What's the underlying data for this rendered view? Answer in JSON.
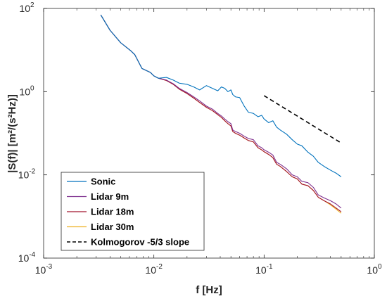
{
  "chart_data": {
    "type": "line",
    "xlabel": "f [Hz]",
    "ylabel": "|S(f)| [m²/(s²Hz)]",
    "xscale": "log",
    "yscale": "log",
    "xlim": [
      0.001,
      1
    ],
    "ylim": [
      0.0001,
      100
    ],
    "grid": false,
    "legend_position": "bottom-left",
    "x_ticks": [
      {
        "base": "10",
        "exp": "-3",
        "value": 0.001
      },
      {
        "base": "10",
        "exp": "-2",
        "value": 0.01
      },
      {
        "base": "10",
        "exp": "-1",
        "value": 0.1
      },
      {
        "base": "10",
        "exp": "0",
        "value": 1
      }
    ],
    "y_ticks": [
      {
        "base": "10",
        "exp": "-4",
        "value": 0.0001
      },
      {
        "base": "10",
        "exp": "-2",
        "value": 0.01
      },
      {
        "base": "10",
        "exp": "0",
        "value": 1
      },
      {
        "base": "10",
        "exp": "2",
        "value": 100
      }
    ],
    "series": [
      {
        "name": "Sonic",
        "color": "#0072BD",
        "line_style": "solid",
        "x": [
          0.0033,
          0.004,
          0.005,
          0.0062,
          0.0067,
          0.0078,
          0.0093,
          0.01,
          0.011,
          0.013,
          0.015,
          0.017,
          0.02,
          0.023,
          0.026,
          0.03,
          0.034,
          0.038,
          0.041,
          0.044,
          0.047,
          0.05,
          0.052,
          0.055,
          0.06,
          0.066,
          0.072,
          0.08,
          0.088,
          0.095,
          0.1,
          0.11,
          0.12,
          0.13,
          0.14,
          0.16,
          0.18,
          0.2,
          0.22,
          0.25,
          0.28,
          0.31,
          0.35,
          0.4,
          0.45,
          0.5
        ],
        "y": [
          70,
          30,
          15,
          9.5,
          7.8,
          3.6,
          2.9,
          2.4,
          2.1,
          2.2,
          1.9,
          1.6,
          1.5,
          1.3,
          1.1,
          1.4,
          1.2,
          1.05,
          1.3,
          1.2,
          1.0,
          1.1,
          0.85,
          0.75,
          0.72,
          0.45,
          0.32,
          0.3,
          0.25,
          0.27,
          0.22,
          0.18,
          0.2,
          0.14,
          0.12,
          0.095,
          0.07,
          0.055,
          0.05,
          0.035,
          0.028,
          0.02,
          0.016,
          0.013,
          0.011,
          0.009
        ]
      },
      {
        "name": "Lidar 9m",
        "color": "#7E2F8E",
        "line_style": "solid",
        "x": [
          0.0033,
          0.004,
          0.005,
          0.0062,
          0.0067,
          0.0078,
          0.0093,
          0.01,
          0.011,
          0.013,
          0.015,
          0.017,
          0.02,
          0.023,
          0.026,
          0.03,
          0.034,
          0.038,
          0.041,
          0.044,
          0.047,
          0.05,
          0.052,
          0.055,
          0.06,
          0.066,
          0.072,
          0.08,
          0.088,
          0.095,
          0.1,
          0.11,
          0.12,
          0.13,
          0.14,
          0.16,
          0.18,
          0.2,
          0.22,
          0.25,
          0.28,
          0.31,
          0.35,
          0.4,
          0.45,
          0.5
        ],
        "y": [
          70,
          30,
          15,
          9.5,
          7.8,
          3.6,
          2.9,
          2.4,
          2.1,
          1.9,
          1.55,
          1.2,
          0.95,
          0.75,
          0.6,
          0.45,
          0.38,
          0.3,
          0.26,
          0.22,
          0.19,
          0.17,
          0.12,
          0.11,
          0.1,
          0.085,
          0.075,
          0.07,
          0.05,
          0.045,
          0.04,
          0.035,
          0.03,
          0.02,
          0.018,
          0.014,
          0.01,
          0.009,
          0.007,
          0.0065,
          0.005,
          0.0033,
          0.0028,
          0.0024,
          0.002,
          0.0016
        ]
      },
      {
        "name": "Lidar 18m",
        "color": "#A2142F",
        "line_style": "solid",
        "x": [
          0.0033,
          0.004,
          0.005,
          0.0062,
          0.0067,
          0.0078,
          0.0093,
          0.01,
          0.011,
          0.013,
          0.015,
          0.017,
          0.02,
          0.023,
          0.026,
          0.03,
          0.034,
          0.038,
          0.041,
          0.044,
          0.047,
          0.05,
          0.052,
          0.055,
          0.06,
          0.066,
          0.072,
          0.08,
          0.088,
          0.095,
          0.1,
          0.11,
          0.12,
          0.13,
          0.14,
          0.16,
          0.18,
          0.2,
          0.22,
          0.25,
          0.28,
          0.31,
          0.35,
          0.4,
          0.45,
          0.5
        ],
        "y": [
          70,
          30,
          15,
          9.5,
          7.8,
          3.6,
          2.9,
          2.4,
          2.1,
          1.85,
          1.5,
          1.15,
          0.9,
          0.7,
          0.55,
          0.42,
          0.35,
          0.28,
          0.24,
          0.2,
          0.17,
          0.15,
          0.11,
          0.1,
          0.09,
          0.077,
          0.067,
          0.062,
          0.045,
          0.04,
          0.036,
          0.031,
          0.026,
          0.018,
          0.016,
          0.012,
          0.009,
          0.008,
          0.006,
          0.0055,
          0.0042,
          0.0029,
          0.0024,
          0.002,
          0.0016,
          0.0013
        ]
      },
      {
        "name": "Lidar 30m",
        "color": "#EDB120",
        "line_style": "solid",
        "x": [
          0.0033,
          0.004,
          0.005,
          0.0062,
          0.0067,
          0.0078,
          0.0093,
          0.01,
          0.011,
          0.013,
          0.015,
          0.017,
          0.02,
          0.023,
          0.026,
          0.03,
          0.034,
          0.038,
          0.041,
          0.044,
          0.047,
          0.05,
          0.052,
          0.055,
          0.06,
          0.066,
          0.072,
          0.08,
          0.088,
          0.095,
          0.1,
          0.11,
          0.12,
          0.13,
          0.14,
          0.16,
          0.18,
          0.2,
          0.22,
          0.25,
          0.28,
          0.31,
          0.35,
          0.4,
          0.45,
          0.5
        ],
        "y": [
          70,
          30,
          15,
          9.5,
          7.8,
          3.6,
          2.9,
          2.4,
          2.1,
          1.85,
          1.5,
          1.15,
          0.9,
          0.7,
          0.55,
          0.42,
          0.35,
          0.28,
          0.24,
          0.2,
          0.17,
          0.15,
          0.11,
          0.1,
          0.09,
          0.077,
          0.067,
          0.062,
          0.045,
          0.04,
          0.036,
          0.031,
          0.026,
          0.018,
          0.016,
          0.012,
          0.009,
          0.008,
          0.006,
          0.0055,
          0.0042,
          0.0029,
          0.0024,
          0.0019,
          0.0015,
          0.0012
        ]
      },
      {
        "name": "Kolmogorov -5/3 slope",
        "color": "#000000",
        "line_style": "dashed",
        "x": [
          0.1,
          0.5
        ],
        "y": [
          0.8,
          0.0585
        ]
      }
    ]
  }
}
